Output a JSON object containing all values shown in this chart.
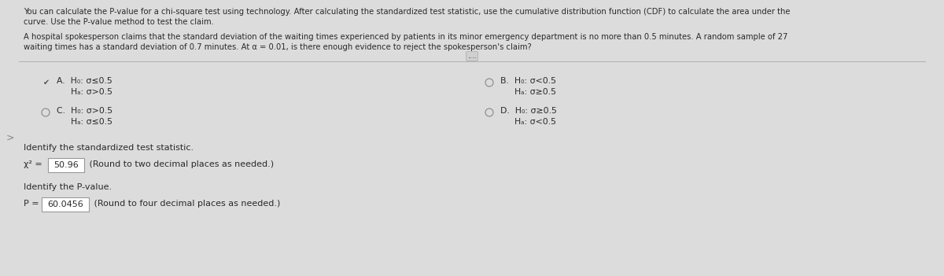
{
  "bg_color": "#dcdcdc",
  "panel_color": "#e8e8e8",
  "text_color": "#2a2a2a",
  "header_line1": "You can calculate the P-value for a chi-square test using technology. After calculating the standardized test statistic, use the cumulative distribution function (CDF) to calculate the area under the",
  "header_line2": "curve. Use the P-value method to test the claim.",
  "problem_line1": "A hospital spokesperson claims that the standard deviation of the waiting times experienced by patients in its minor emergency department is no more than 0.5 minutes. A random sample of 27",
  "problem_line2": "waiting times has a standard deviation of 0.7 minutes. At α = 0.01, is there enough evidence to reject the spokesperson's claim?",
  "option_A_H0": "H₀: σ≤0.5",
  "option_A_Ha": "Hₐ: σ>0.5",
  "option_B_H0": "H₀: σ<0.5",
  "option_B_Ha": "Hₐ: σ≥0.5",
  "option_C_H0": "H₀: σ>0.5",
  "option_C_Ha": "Hₐ: σ≤0.5",
  "option_D_H0": "H₀: σ≥0.5",
  "option_D_Ha": "Hₐ: σ<0.5",
  "stat_label": "Identify the standardized test statistic.",
  "stat_value": "50.96",
  "stat_suffix": " (Round to two decimal places as needed.)",
  "pval_label": "Identify the P-value.",
  "pval_value": "60.0456",
  "pval_suffix": " (Round to four decimal places as needed.)",
  "separator_color": "#b0b0b0",
  "box_edge_color": "#999999",
  "box_face_color": "#ffffff",
  "radio_color": "#888888",
  "check_color": "#555555",
  "dots_text": ".....",
  "font_size_header": 7.2,
  "font_size_options": 7.8,
  "font_size_stat": 8.0,
  "nav_arrow_color": "#888888"
}
